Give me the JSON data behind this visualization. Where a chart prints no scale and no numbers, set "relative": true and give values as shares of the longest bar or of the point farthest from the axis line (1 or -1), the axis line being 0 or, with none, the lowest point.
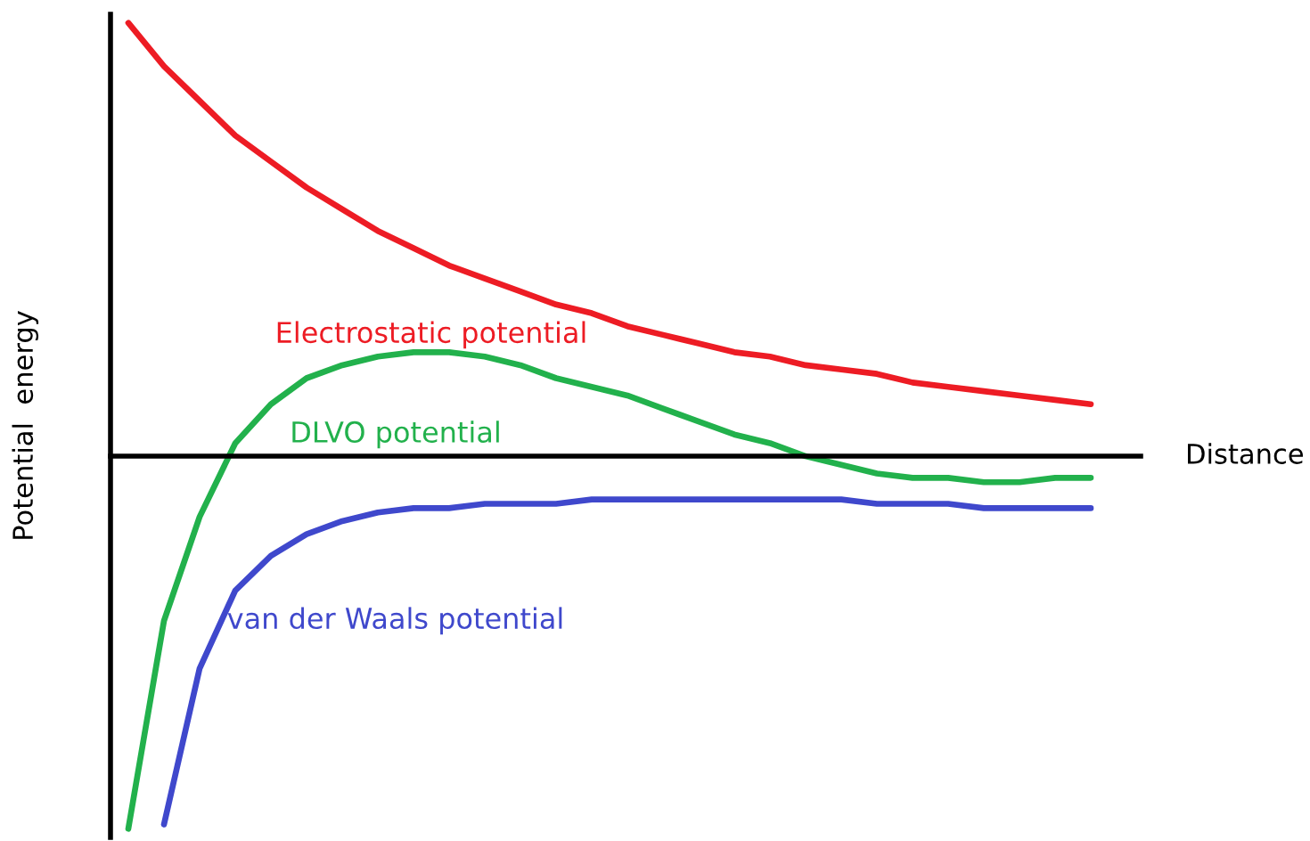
{
  "chart_data": {
    "type": "line",
    "relative": true,
    "xlabel": "Distance",
    "ylabel": "Potential  energy",
    "legend": false,
    "grid": false,
    "marker": "none",
    "line_style": "solid",
    "categories": [
      null,
      null,
      null,
      null,
      null,
      null,
      null,
      null,
      null,
      null,
      null,
      null,
      null,
      null,
      null,
      null,
      null,
      null,
      null,
      null,
      null,
      null,
      null,
      null,
      null,
      null,
      null,
      null
    ],
    "series": [
      {
        "name": "Electrostatic potential",
        "color": "#ed1c24",
        "values": [
          1.0,
          0.9,
          0.82,
          0.74,
          0.68,
          0.62,
          0.57,
          0.52,
          0.48,
          0.44,
          0.41,
          0.38,
          0.35,
          0.33,
          0.3,
          0.28,
          0.26,
          0.24,
          0.23,
          0.21,
          0.2,
          0.19,
          0.17,
          0.16,
          0.15,
          0.14,
          0.13,
          0.12
        ]
      },
      {
        "name": "DLVO potential",
        "color": "#22b14c",
        "values": [
          -0.86,
          -0.38,
          -0.14,
          0.03,
          0.12,
          0.18,
          0.21,
          0.23,
          0.24,
          0.24,
          0.23,
          0.21,
          0.18,
          0.16,
          0.14,
          0.11,
          0.08,
          0.05,
          0.03,
          0.0,
          -0.02,
          -0.04,
          -0.05,
          -0.05,
          -0.06,
          -0.06,
          -0.05,
          -0.05
        ]
      },
      {
        "name": "van der Waals potential",
        "color": "#3f48cc",
        "values": [
          null,
          -0.85,
          -0.49,
          -0.31,
          -0.23,
          -0.18,
          -0.15,
          -0.13,
          -0.12,
          -0.12,
          -0.11,
          -0.11,
          -0.11,
          -0.1,
          -0.1,
          -0.1,
          -0.1,
          -0.1,
          -0.1,
          -0.1,
          -0.1,
          -0.11,
          -0.11,
          -0.11,
          -0.12,
          -0.12,
          -0.12,
          -0.12
        ]
      }
    ]
  }
}
